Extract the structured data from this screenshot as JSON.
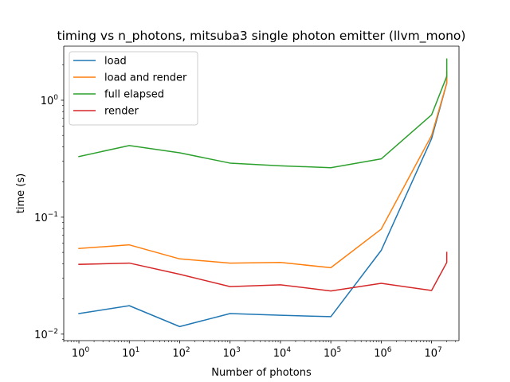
{
  "chart_data": {
    "type": "line",
    "title": "timing vs n_photons, mitsuba3 single photon emitter (llvm_mono)",
    "xlabel": "Number of photons",
    "ylabel": "time (s)",
    "xscale": "log",
    "yscale": "log",
    "xlim": [
      0.5,
      35000000
    ],
    "ylim": [
      0.0088,
      2.9
    ],
    "x_ticks": [
      {
        "value": 1,
        "base": "10",
        "exp": "0"
      },
      {
        "value": 10,
        "base": "10",
        "exp": "1"
      },
      {
        "value": 100,
        "base": "10",
        "exp": "2"
      },
      {
        "value": 1000,
        "base": "10",
        "exp": "3"
      },
      {
        "value": 10000,
        "base": "10",
        "exp": "4"
      },
      {
        "value": 100000,
        "base": "10",
        "exp": "5"
      },
      {
        "value": 1000000,
        "base": "10",
        "exp": "6"
      },
      {
        "value": 10000000,
        "base": "10",
        "exp": "7"
      }
    ],
    "y_ticks": [
      {
        "value": 0.01,
        "base": "10",
        "exp": "−2"
      },
      {
        "value": 0.1,
        "base": "10",
        "exp": "−1"
      },
      {
        "value": 1,
        "base": "10",
        "exp": "0"
      }
    ],
    "grid": false,
    "legend_position": "top-left",
    "series": [
      {
        "name": "load",
        "color": "#1f77b4",
        "x": [
          1,
          10,
          100,
          1000,
          10000,
          100000,
          1000000,
          10000000,
          20000000,
          20000000
        ],
        "y": [
          0.015,
          0.0175,
          0.0116,
          0.015,
          0.0145,
          0.0141,
          0.052,
          0.47,
          1.4,
          1.6
        ]
      },
      {
        "name": "load and render",
        "color": "#ff7f0e",
        "x": [
          1,
          10,
          100,
          1000,
          10000,
          100000,
          1000000,
          10000000,
          20000000,
          20000000
        ],
        "y": [
          0.054,
          0.058,
          0.044,
          0.0405,
          0.041,
          0.037,
          0.079,
          0.5,
          1.4,
          1.75
        ]
      },
      {
        "name": "full elapsed",
        "color": "#2ca02c",
        "x": [
          1,
          10,
          100,
          1000,
          10000,
          100000,
          1000000,
          10000000,
          20000000,
          20000000
        ],
        "y": [
          0.33,
          0.41,
          0.355,
          0.29,
          0.275,
          0.265,
          0.315,
          0.75,
          1.6,
          2.25
        ]
      },
      {
        "name": "render",
        "color": "#d62728",
        "x": [
          1,
          10,
          100,
          1000,
          10000,
          100000,
          1000000,
          10000000,
          20000000,
          20000000
        ],
        "y": [
          0.0395,
          0.0405,
          0.0325,
          0.0255,
          0.0264,
          0.0234,
          0.0272,
          0.0236,
          0.041,
          0.05
        ]
      }
    ]
  }
}
